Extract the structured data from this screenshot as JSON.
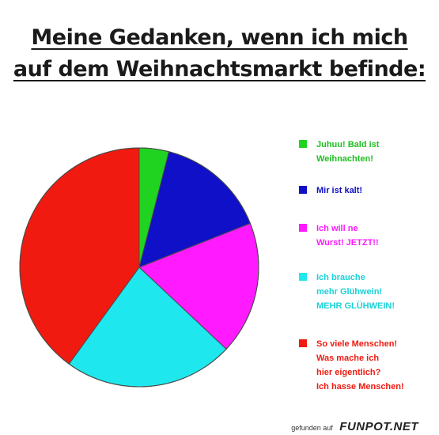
{
  "title": {
    "line1": "Meine Gedanken, wenn ich mich",
    "line2": "auf dem Weihnachtsmarkt befinde:"
  },
  "chart_data": {
    "type": "pie",
    "title": "Meine Gedanken, wenn ich mich auf dem Weihnachtsmarkt befinde:",
    "legend_position": "right",
    "slices": [
      {
        "lines": [
          "Juhuu! Bald ist",
          "Weihnachten!"
        ],
        "value": 4,
        "color": "#21d321"
      },
      {
        "lines": [
          "Mir ist kalt!"
        ],
        "value": 15,
        "color": "#1010c8"
      },
      {
        "lines": [
          "Ich will ne",
          "Wurst! JETZT!!"
        ],
        "value": 18,
        "color": "#ff1aff"
      },
      {
        "lines": [
          "Ich brauche",
          "mehr Glühwein!",
          "MEHR GLÜHWEIN!"
        ],
        "value": 23,
        "color": "#1ee8ee"
      },
      {
        "lines": [
          "So viele Menschen!",
          "Was mache ich",
          "hier eigentlich?",
          "Ich hasse Menschen!"
        ],
        "value": 40,
        "color": "#f01a10"
      }
    ]
  },
  "footer": {
    "prefix": "gefunden auf",
    "brand": "FUNPOT.NET"
  }
}
